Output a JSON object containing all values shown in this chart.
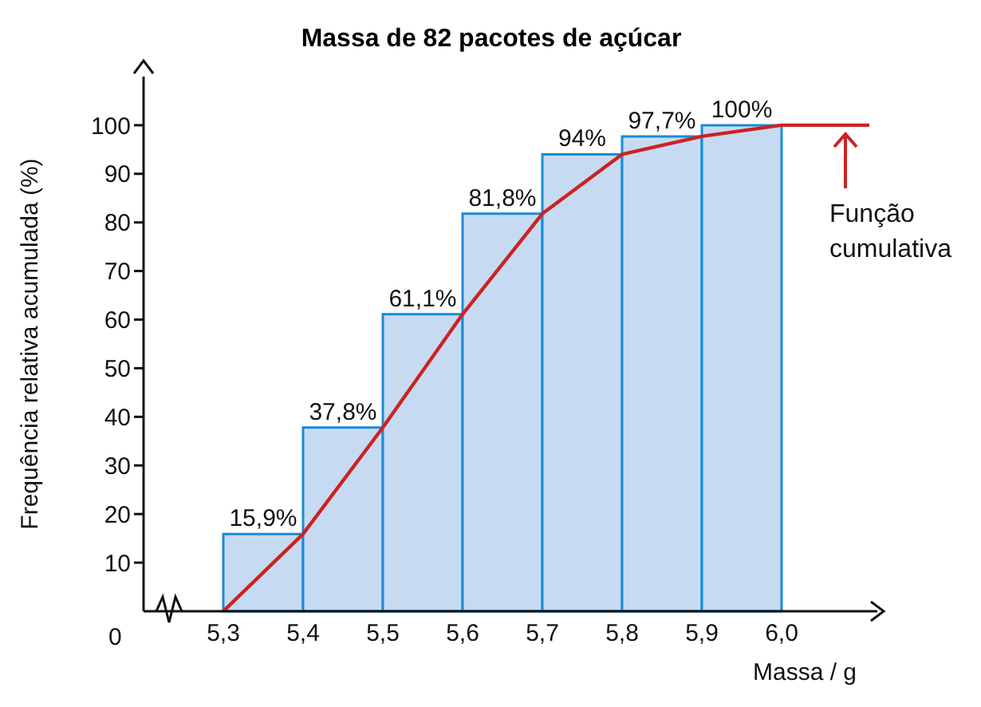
{
  "chart_data": {
    "type": "histogram",
    "title": "Massa de 82 pacotes de açúcar",
    "xlabel": "Massa / g",
    "ylabel": "Frequência relativa acumulada (%)",
    "bins": [
      5.3,
      5.4,
      5.5,
      5.6,
      5.7,
      5.8,
      5.9,
      6.0
    ],
    "values": [
      15.9,
      37.8,
      61.1,
      81.8,
      94,
      97.7,
      100
    ],
    "value_labels": [
      "15,9%",
      "37,8%",
      "61,1%",
      "81,8%",
      "94%",
      "97,7%",
      "100%"
    ],
    "color": "#c6dbf2",
    "series": [
      {
        "type": "line",
        "color": "#cc2222",
        "x": [
          5.3,
          5.4,
          5.5,
          5.6,
          5.7,
          5.8,
          5.9,
          6.0,
          6.11
        ],
        "values": [
          0,
          15.9,
          37.8,
          61.1,
          81.8,
          94,
          97.7,
          100,
          100
        ]
      }
    ],
    "annotations": [
      "Função cumulativa",
      "0"
    ],
    "xlim": [
      5.2,
      6.12
    ],
    "xticks": [
      {
        "value": 5.3,
        "label": "5,3"
      },
      {
        "value": 5.4,
        "label": "5,4"
      },
      {
        "value": 5.5,
        "label": "5,5"
      },
      {
        "value": 5.6,
        "label": "5,6"
      },
      {
        "value": 5.7,
        "label": "5,7"
      },
      {
        "value": 5.8,
        "label": "5,8"
      },
      {
        "value": 5.9,
        "label": "5,9"
      },
      {
        "value": 6.0,
        "label": "6,0"
      }
    ],
    "ylim": [
      0,
      110
    ],
    "yticks": [
      10,
      20,
      30,
      40,
      50,
      60,
      70,
      80,
      90,
      100
    ],
    "grid": false,
    "marker": "none",
    "line_style": "solid"
  }
}
